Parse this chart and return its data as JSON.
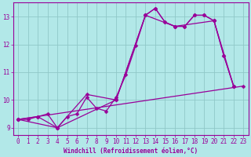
{
  "title": "",
  "xlabel": "Windchill (Refroidissement éolien,°C)",
  "ylabel": "",
  "bg_color": "#b2e8e8",
  "line_color": "#990099",
  "grid_color": "#90c8c8",
  "xlim": [
    -0.5,
    23.5
  ],
  "ylim": [
    8.75,
    13.5
  ],
  "yticks": [
    9,
    10,
    11,
    12,
    13
  ],
  "xticks": [
    0,
    1,
    2,
    3,
    4,
    5,
    6,
    7,
    8,
    9,
    10,
    11,
    12,
    13,
    14,
    15,
    16,
    17,
    18,
    19,
    20,
    21,
    22,
    23
  ],
  "lines": [
    {
      "x": [
        0,
        23
      ],
      "y": [
        9.3,
        10.5
      ]
    },
    {
      "x": [
        0,
        4,
        10,
        13,
        16,
        20,
        22
      ],
      "y": [
        9.3,
        9.0,
        10.0,
        13.05,
        12.65,
        12.85,
        10.5
      ]
    },
    {
      "x": [
        0,
        1,
        2,
        3,
        4,
        5,
        6,
        7,
        8,
        9,
        10,
        11,
        12,
        13,
        14,
        15,
        16,
        17,
        18,
        19,
        20,
        21,
        22
      ],
      "y": [
        9.3,
        9.3,
        9.4,
        9.5,
        9.0,
        9.4,
        9.5,
        10.1,
        9.7,
        9.6,
        10.1,
        10.9,
        11.95,
        13.05,
        13.3,
        12.8,
        12.65,
        12.65,
        13.05,
        13.05,
        12.85,
        11.6,
        10.5
      ]
    },
    {
      "x": [
        0,
        2,
        4,
        7,
        10,
        13,
        14,
        15,
        16,
        17,
        18,
        19,
        20,
        21,
        22
      ],
      "y": [
        9.3,
        9.4,
        9.0,
        10.2,
        10.0,
        13.05,
        13.3,
        12.8,
        12.65,
        12.65,
        13.05,
        13.05,
        12.85,
        11.6,
        10.5
      ]
    }
  ]
}
